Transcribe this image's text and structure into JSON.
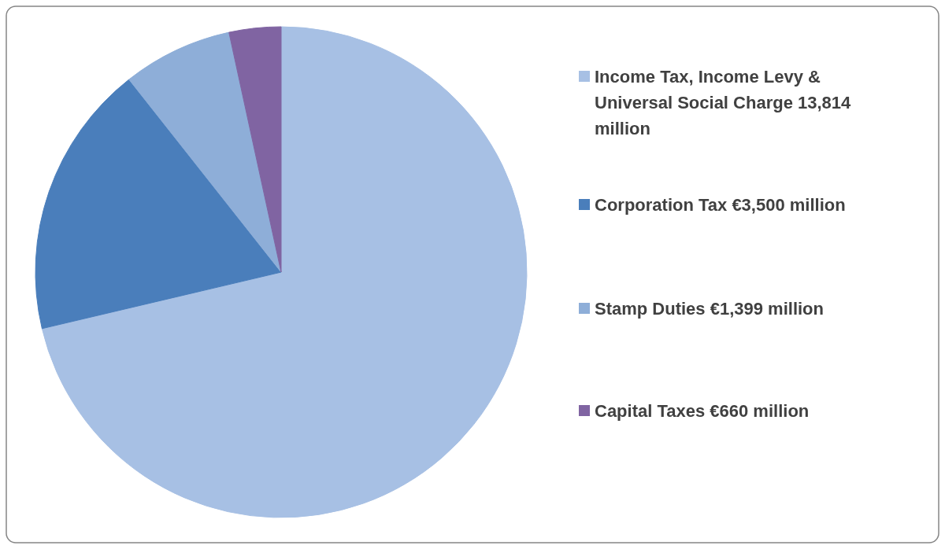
{
  "chart_data": {
    "type": "pie",
    "categories": [
      "Income Tax, Income Levy & Universal Social Charge",
      "Corporation Tax",
      "Stamp Duties",
      "Capital Taxes"
    ],
    "values": [
      13814,
      3500,
      1399,
      660
    ],
    "value_labels": [
      "13,814 million",
      "€3,500 million",
      "€1,399 million",
      "€660 million"
    ],
    "colors": [
      "#a7c0e4",
      "#4a7ebb",
      "#8eaed8",
      "#8064a2"
    ],
    "legend": "right"
  }
}
